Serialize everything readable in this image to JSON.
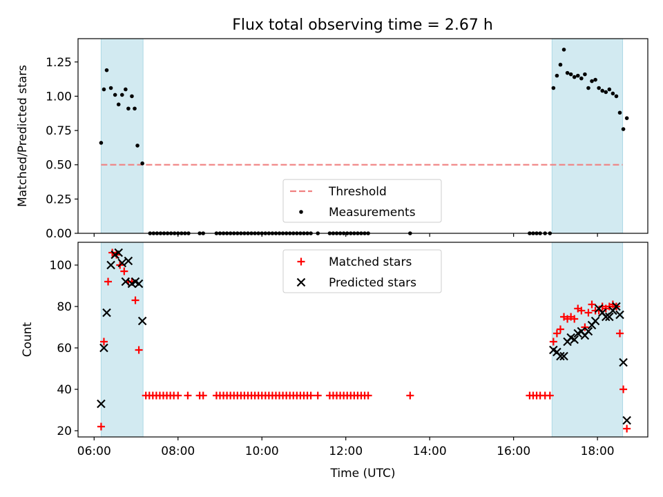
{
  "figure_title": "Flux total observing time = 2.67 h",
  "chart_data": [
    {
      "type": "scatter",
      "ylabel": "Matched/Predicted stars",
      "xlabel": "",
      "x_unit": "hours UTC",
      "xlim": [
        "05:37",
        "19:12"
      ],
      "ylim": [
        0,
        1.42
      ],
      "yticks": [
        0,
        0.25,
        0.5,
        0.75,
        1.0,
        1.25
      ],
      "ytick_labels": [
        "0.00",
        "0.25",
        "0.50",
        "0.75",
        "1.00",
        "1.25"
      ],
      "legend": {
        "placement": "lower-center",
        "entries": [
          "Threshold",
          "Measurements"
        ]
      },
      "shaded_intervals": [
        [
          "06:10",
          "07:10"
        ],
        [
          "16:55",
          "18:36"
        ]
      ],
      "shade_color": "#add8e6",
      "threshold": {
        "name": "Threshold",
        "value": 0.5,
        "color": "#f08080",
        "style": "dashed"
      },
      "series": [
        {
          "name": "Measurements",
          "marker": "dot",
          "color": "#000000",
          "points": [
            [
              "06:10",
              0.66
            ],
            [
              "06:14",
              1.05
            ],
            [
              "06:18",
              1.19
            ],
            [
              "06:24",
              1.06
            ],
            [
              "06:30",
              1.01
            ],
            [
              "06:35",
              0.94
            ],
            [
              "06:40",
              1.01
            ],
            [
              "06:45",
              1.05
            ],
            [
              "06:49",
              0.91
            ],
            [
              "06:54",
              1.0
            ],
            [
              "06:58",
              0.91
            ],
            [
              "07:02",
              0.64
            ],
            [
              "07:09",
              0.51
            ],
            [
              "07:20",
              0.0
            ],
            [
              "07:25",
              0.0
            ],
            [
              "07:30",
              0.0
            ],
            [
              "07:35",
              0.0
            ],
            [
              "07:40",
              0.0
            ],
            [
              "07:45",
              0.0
            ],
            [
              "07:50",
              0.0
            ],
            [
              "07:55",
              0.0
            ],
            [
              "08:00",
              0.0
            ],
            [
              "08:05",
              0.0
            ],
            [
              "08:10",
              0.0
            ],
            [
              "08:15",
              0.0
            ],
            [
              "08:31",
              0.0
            ],
            [
              "08:36",
              0.0
            ],
            [
              "08:55",
              0.0
            ],
            [
              "09:00",
              0.0
            ],
            [
              "09:05",
              0.0
            ],
            [
              "09:10",
              0.0
            ],
            [
              "09:15",
              0.0
            ],
            [
              "09:20",
              0.0
            ],
            [
              "09:25",
              0.0
            ],
            [
              "09:30",
              0.0
            ],
            [
              "09:35",
              0.0
            ],
            [
              "09:40",
              0.0
            ],
            [
              "09:45",
              0.0
            ],
            [
              "09:50",
              0.0
            ],
            [
              "09:55",
              0.0
            ],
            [
              "10:00",
              0.0
            ],
            [
              "10:05",
              0.0
            ],
            [
              "10:10",
              0.0
            ],
            [
              "10:15",
              0.0
            ],
            [
              "10:20",
              0.0
            ],
            [
              "10:25",
              0.0
            ],
            [
              "10:30",
              0.0
            ],
            [
              "10:35",
              0.0
            ],
            [
              "10:40",
              0.0
            ],
            [
              "10:45",
              0.0
            ],
            [
              "10:50",
              0.0
            ],
            [
              "10:55",
              0.0
            ],
            [
              "11:00",
              0.0
            ],
            [
              "11:05",
              0.0
            ],
            [
              "11:10",
              0.0
            ],
            [
              "11:20",
              0.0
            ],
            [
              "11:37",
              0.0
            ],
            [
              "11:42",
              0.0
            ],
            [
              "11:47",
              0.0
            ],
            [
              "11:52",
              0.0
            ],
            [
              "11:57",
              0.0
            ],
            [
              "12:02",
              0.0
            ],
            [
              "12:07",
              0.0
            ],
            [
              "12:12",
              0.0
            ],
            [
              "12:17",
              0.0
            ],
            [
              "12:22",
              0.0
            ],
            [
              "12:27",
              0.0
            ],
            [
              "12:32",
              0.0
            ],
            [
              "13:32",
              0.0
            ],
            [
              "16:23",
              0.0
            ],
            [
              "16:28",
              0.0
            ],
            [
              "16:33",
              0.0
            ],
            [
              "16:38",
              0.0
            ],
            [
              "16:45",
              0.0
            ],
            [
              "16:52",
              0.0
            ],
            [
              "16:57",
              1.06
            ],
            [
              "17:02",
              1.15
            ],
            [
              "17:07",
              1.23
            ],
            [
              "17:12",
              1.34
            ],
            [
              "17:17",
              1.17
            ],
            [
              "17:22",
              1.16
            ],
            [
              "17:27",
              1.14
            ],
            [
              "17:32",
              1.15
            ],
            [
              "17:37",
              1.13
            ],
            [
              "17:42",
              1.16
            ],
            [
              "17:47",
              1.06
            ],
            [
              "17:52",
              1.11
            ],
            [
              "17:57",
              1.12
            ],
            [
              "18:02",
              1.06
            ],
            [
              "18:07",
              1.04
            ],
            [
              "18:12",
              1.03
            ],
            [
              "18:17",
              1.05
            ],
            [
              "18:22",
              1.02
            ],
            [
              "18:27",
              1.0
            ],
            [
              "18:32",
              0.88
            ],
            [
              "18:37",
              0.76
            ],
            [
              "18:42",
              0.84
            ]
          ]
        }
      ]
    },
    {
      "type": "scatter",
      "ylabel": "Count",
      "xlabel": "Time (UTC)",
      "x_unit": "hours UTC",
      "xlim": [
        "05:37",
        "19:12"
      ],
      "ylim": [
        17,
        111
      ],
      "yticks": [
        20,
        40,
        60,
        80,
        100
      ],
      "ytick_labels": [
        "20",
        "40",
        "60",
        "80",
        "100"
      ],
      "xticks": [
        "06:00",
        "08:00",
        "10:00",
        "12:00",
        "14:00",
        "16:00",
        "18:00"
      ],
      "legend": {
        "placement": "upper-center",
        "entries": [
          "Matched stars",
          "Predicted stars"
        ]
      },
      "shaded_intervals": [
        [
          "06:10",
          "07:10"
        ],
        [
          "16:55",
          "18:36"
        ]
      ],
      "shade_color": "#add8e6",
      "series": [
        {
          "name": "Matched stars",
          "marker": "plus",
          "color": "#ff0000",
          "points": [
            [
              "06:10",
              22
            ],
            [
              "06:14",
              63
            ],
            [
              "06:20",
              92
            ],
            [
              "06:26",
              106
            ],
            [
              "06:32",
              105
            ],
            [
              "06:37",
              100
            ],
            [
              "06:43",
              97
            ],
            [
              "06:49",
              92
            ],
            [
              "06:54",
              92
            ],
            [
              "06:59",
              83
            ],
            [
              "07:04",
              59
            ],
            [
              "07:14",
              37
            ],
            [
              "07:19",
              37
            ],
            [
              "07:24",
              37
            ],
            [
              "07:29",
              37
            ],
            [
              "07:34",
              37
            ],
            [
              "07:39",
              37
            ],
            [
              "07:44",
              37
            ],
            [
              "07:49",
              37
            ],
            [
              "07:54",
              37
            ],
            [
              "08:00",
              37
            ],
            [
              "08:14",
              37
            ],
            [
              "08:31",
              37
            ],
            [
              "08:36",
              37
            ],
            [
              "08:55",
              37
            ],
            [
              "09:00",
              37
            ],
            [
              "09:05",
              37
            ],
            [
              "09:10",
              37
            ],
            [
              "09:15",
              37
            ],
            [
              "09:20",
              37
            ],
            [
              "09:25",
              37
            ],
            [
              "09:30",
              37
            ],
            [
              "09:35",
              37
            ],
            [
              "09:40",
              37
            ],
            [
              "09:45",
              37
            ],
            [
              "09:50",
              37
            ],
            [
              "09:55",
              37
            ],
            [
              "10:00",
              37
            ],
            [
              "10:05",
              37
            ],
            [
              "10:10",
              37
            ],
            [
              "10:15",
              37
            ],
            [
              "10:20",
              37
            ],
            [
              "10:25",
              37
            ],
            [
              "10:30",
              37
            ],
            [
              "10:35",
              37
            ],
            [
              "10:40",
              37
            ],
            [
              "10:45",
              37
            ],
            [
              "10:50",
              37
            ],
            [
              "10:55",
              37
            ],
            [
              "11:00",
              37
            ],
            [
              "11:05",
              37
            ],
            [
              "11:10",
              37
            ],
            [
              "11:20",
              37
            ],
            [
              "11:37",
              37
            ],
            [
              "11:42",
              37
            ],
            [
              "11:47",
              37
            ],
            [
              "11:52",
              37
            ],
            [
              "11:57",
              37
            ],
            [
              "12:02",
              37
            ],
            [
              "12:07",
              37
            ],
            [
              "12:12",
              37
            ],
            [
              "12:17",
              37
            ],
            [
              "12:22",
              37
            ],
            [
              "12:27",
              37
            ],
            [
              "12:32",
              37
            ],
            [
              "13:32",
              37
            ],
            [
              "16:23",
              37
            ],
            [
              "16:28",
              37
            ],
            [
              "16:33",
              37
            ],
            [
              "16:38",
              37
            ],
            [
              "16:45",
              37
            ],
            [
              "16:52",
              37
            ],
            [
              "16:57",
              63
            ],
            [
              "17:02",
              67
            ],
            [
              "17:07",
              69
            ],
            [
              "17:12",
              75
            ],
            [
              "17:17",
              74
            ],
            [
              "17:22",
              75
            ],
            [
              "17:27",
              74
            ],
            [
              "17:32",
              79
            ],
            [
              "17:37",
              78
            ],
            [
              "17:42",
              70
            ],
            [
              "17:47",
              77
            ],
            [
              "17:52",
              81
            ],
            [
              "17:57",
              78
            ],
            [
              "18:02",
              78
            ],
            [
              "18:07",
              80
            ],
            [
              "18:12",
              79
            ],
            [
              "18:17",
              80
            ],
            [
              "18:22",
              81
            ],
            [
              "18:27",
              80
            ],
            [
              "18:32",
              67
            ],
            [
              "18:37",
              40
            ],
            [
              "18:42",
              21
            ]
          ]
        },
        {
          "name": "Predicted stars",
          "marker": "x",
          "color": "#000000",
          "points": [
            [
              "06:10",
              33
            ],
            [
              "06:14",
              60
            ],
            [
              "06:18",
              77
            ],
            [
              "06:24",
              100
            ],
            [
              "06:30",
              105
            ],
            [
              "06:35",
              106
            ],
            [
              "06:40",
              101
            ],
            [
              "06:45",
              92
            ],
            [
              "06:49",
              102
            ],
            [
              "06:54",
              91
            ],
            [
              "06:59",
              92
            ],
            [
              "07:04",
              91
            ],
            [
              "07:09",
              73
            ],
            [
              "16:57",
              59
            ],
            [
              "17:02",
              58
            ],
            [
              "17:07",
              56
            ],
            [
              "17:12",
              56
            ],
            [
              "17:17",
              63
            ],
            [
              "17:22",
              65
            ],
            [
              "17:27",
              64
            ],
            [
              "17:32",
              67
            ],
            [
              "17:37",
              68
            ],
            [
              "17:42",
              66
            ],
            [
              "17:47",
              68
            ],
            [
              "17:52",
              71
            ],
            [
              "17:57",
              73
            ],
            [
              "18:02",
              79
            ],
            [
              "18:07",
              77
            ],
            [
              "18:12",
              75
            ],
            [
              "18:17",
              75
            ],
            [
              "18:22",
              78
            ],
            [
              "18:27",
              80
            ],
            [
              "18:32",
              76
            ],
            [
              "18:37",
              53
            ],
            [
              "18:42",
              25
            ]
          ]
        }
      ]
    }
  ]
}
